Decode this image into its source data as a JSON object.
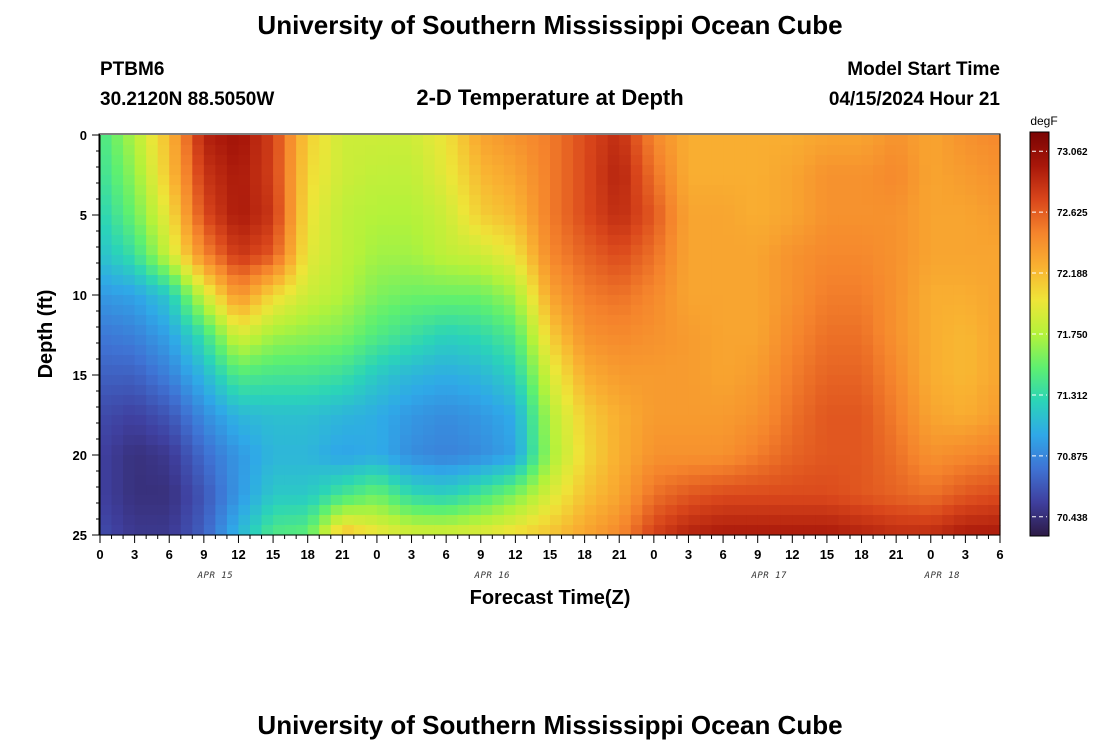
{
  "header": {
    "title": "University of Southern Mississippi Ocean Cube",
    "station_id": "PTBM6",
    "station_coords": "30.2120N  88.5050W",
    "plot_title": "2-D Temperature at Depth",
    "model_start_label": "Model Start Time",
    "model_start_value": "04/15/2024 Hour 21"
  },
  "footer": {
    "title": "University of Southern Mississippi Ocean Cube"
  },
  "chart_data": {
    "type": "heatmap",
    "title": "2-D Temperature at Depth",
    "xlabel": "Forecast Time(Z)",
    "ylabel": "Depth (ft)",
    "x_tick_labels": [
      "0",
      "3",
      "6",
      "9",
      "12",
      "15",
      "18",
      "21",
      "0",
      "3",
      "6",
      "9",
      "12",
      "15",
      "18",
      "21",
      "0",
      "3",
      "6",
      "9",
      "12",
      "15",
      "18",
      "21",
      "0",
      "3",
      "6"
    ],
    "x_date_labels": [
      {
        "label": "APR 15",
        "hour": 10
      },
      {
        "label": "APR 16",
        "hour": 34
      },
      {
        "label": "APR 17",
        "hour": 58
      },
      {
        "label": "APR 18",
        "hour": 73
      }
    ],
    "xlim_hours": [
      0,
      78
    ],
    "y_tick_labels": [
      "0",
      "5",
      "10",
      "15",
      "20",
      "25"
    ],
    "ylim_ft": [
      0,
      25
    ],
    "y_inverted": true,
    "colorbar": {
      "unit": "degF",
      "ticks": [
        "73.062",
        "72.625",
        "72.188",
        "71.750",
        "71.312",
        "70.875",
        "70.438"
      ],
      "range": [
        70.3,
        73.2
      ],
      "colors": [
        "#2d1a45",
        "#3f3f9e",
        "#3f73d4",
        "#2fa8e8",
        "#2bd4b8",
        "#5ef070",
        "#b4f23a",
        "#eee538",
        "#f9b131",
        "#f5842c",
        "#d9461b",
        "#a8170a",
        "#7a0403"
      ]
    },
    "grid": false,
    "depths_ft": [
      0,
      2.5,
      5,
      7.5,
      10,
      12.5,
      15,
      17.5,
      20,
      22.5,
      25
    ],
    "hours": [
      0,
      3,
      6,
      9,
      12,
      15,
      18,
      21,
      24,
      27,
      30,
      33,
      36,
      39,
      42,
      45,
      48,
      51,
      54,
      57,
      60,
      63,
      66,
      69,
      72,
      75,
      78
    ],
    "temperature_degF": [
      [
        71.4,
        71.75,
        72.2,
        72.9,
        73.0,
        72.75,
        72.1,
        71.85,
        71.85,
        71.85,
        72.0,
        72.3,
        72.4,
        72.5,
        72.7,
        72.85,
        72.45,
        72.25,
        72.25,
        72.25,
        72.25,
        72.3,
        72.3,
        72.4,
        72.3,
        72.4,
        72.45
      ],
      [
        71.35,
        71.65,
        72.15,
        72.8,
        72.95,
        72.75,
        72.05,
        71.85,
        71.8,
        71.8,
        71.95,
        72.2,
        72.3,
        72.5,
        72.7,
        72.9,
        72.55,
        72.25,
        72.25,
        72.25,
        72.3,
        72.4,
        72.4,
        72.45,
        72.3,
        72.35,
        72.4
      ],
      [
        71.25,
        71.55,
        72.0,
        72.7,
        72.95,
        72.8,
        72.0,
        71.8,
        71.75,
        71.75,
        71.85,
        72.1,
        72.2,
        72.5,
        72.7,
        72.85,
        72.65,
        72.3,
        72.3,
        72.25,
        72.3,
        72.4,
        72.4,
        72.4,
        72.3,
        72.3,
        72.35
      ],
      [
        71.15,
        71.35,
        71.85,
        72.45,
        72.8,
        72.65,
        71.95,
        71.8,
        71.7,
        71.7,
        71.8,
        71.85,
        72.0,
        72.45,
        72.6,
        72.7,
        72.55,
        72.3,
        72.3,
        72.3,
        72.4,
        72.45,
        72.45,
        72.4,
        72.3,
        72.3,
        72.3
      ],
      [
        70.95,
        71.0,
        71.2,
        71.85,
        72.4,
        72.05,
        71.85,
        71.75,
        71.6,
        71.55,
        71.55,
        71.55,
        71.7,
        72.3,
        72.5,
        72.55,
        72.45,
        72.3,
        72.3,
        72.3,
        72.4,
        72.5,
        72.5,
        72.4,
        72.25,
        72.25,
        72.3
      ],
      [
        70.8,
        70.85,
        71.0,
        71.35,
        71.9,
        71.7,
        71.65,
        71.6,
        71.45,
        71.35,
        71.25,
        71.3,
        71.45,
        72.1,
        72.4,
        72.45,
        72.4,
        72.35,
        72.3,
        72.3,
        72.45,
        72.55,
        72.55,
        72.4,
        72.25,
        72.2,
        72.3
      ],
      [
        70.7,
        70.7,
        70.85,
        71.1,
        71.45,
        71.4,
        71.4,
        71.35,
        71.2,
        71.1,
        71.05,
        71.1,
        71.25,
        71.9,
        72.25,
        72.35,
        72.35,
        72.35,
        72.3,
        72.35,
        72.5,
        72.6,
        72.6,
        72.45,
        72.25,
        72.2,
        72.3
      ],
      [
        70.6,
        70.55,
        70.65,
        70.9,
        71.1,
        71.15,
        71.15,
        71.1,
        71.05,
        70.95,
        70.9,
        70.95,
        71.05,
        71.75,
        72.1,
        72.25,
        72.35,
        72.35,
        72.35,
        72.4,
        72.55,
        72.65,
        72.65,
        72.5,
        72.3,
        72.25,
        72.35
      ],
      [
        70.55,
        70.45,
        70.5,
        70.75,
        70.95,
        71.1,
        71.1,
        71.0,
        71.05,
        70.9,
        70.85,
        70.9,
        71.0,
        71.7,
        72.05,
        72.25,
        72.4,
        72.4,
        72.4,
        72.5,
        72.6,
        72.65,
        72.65,
        72.55,
        72.4,
        72.45,
        72.5
      ],
      [
        70.55,
        70.45,
        70.45,
        70.65,
        70.95,
        71.2,
        71.2,
        71.4,
        71.55,
        71.3,
        71.25,
        71.4,
        71.6,
        71.9,
        72.15,
        72.3,
        72.55,
        72.65,
        72.7,
        72.7,
        72.7,
        72.7,
        72.65,
        72.6,
        72.55,
        72.65,
        72.7
      ],
      [
        70.6,
        70.5,
        70.5,
        70.7,
        71.1,
        71.45,
        71.5,
        72.2,
        72.0,
        71.9,
        71.9,
        71.95,
        72.05,
        72.15,
        72.3,
        72.45,
        72.75,
        72.9,
        72.95,
        72.95,
        72.95,
        72.95,
        72.9,
        72.85,
        72.85,
        72.95,
        72.95
      ]
    ]
  }
}
